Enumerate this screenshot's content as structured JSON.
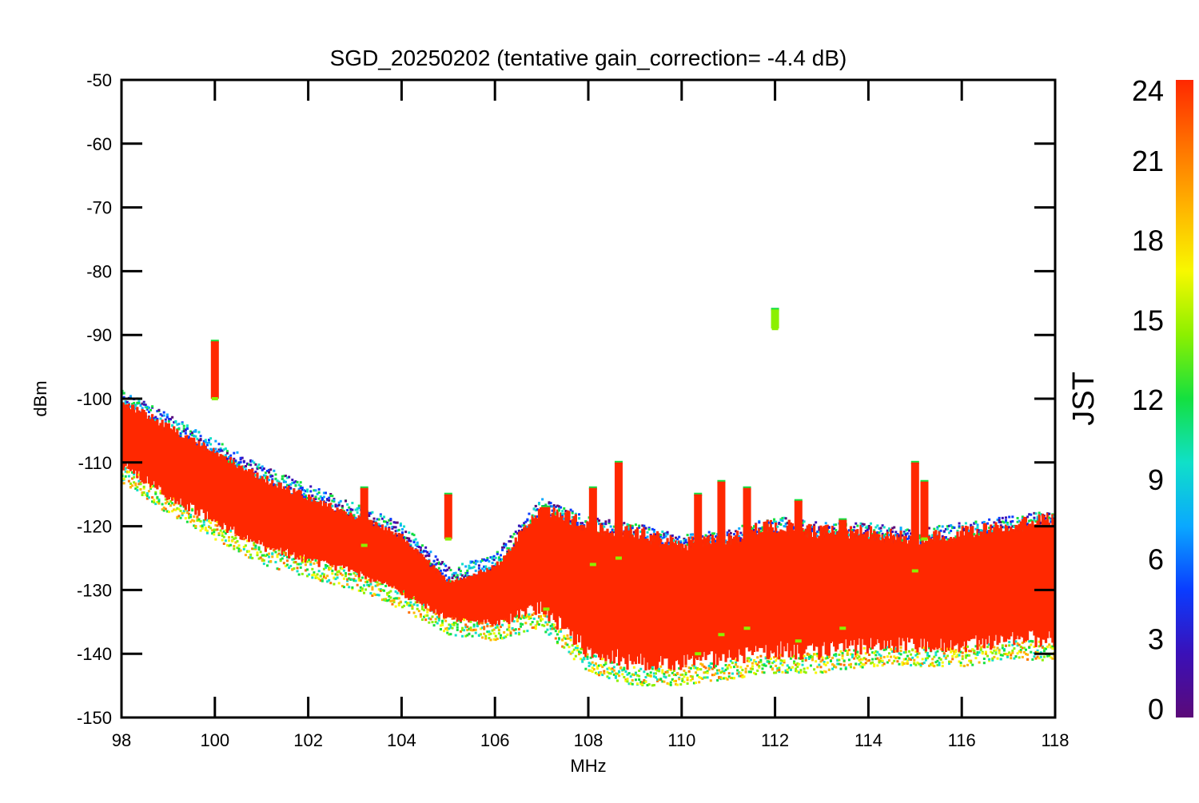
{
  "chart_data": {
    "type": "scatter",
    "title": "SGD_20250202 (tentative gain_correction= -4.4 dB)",
    "xlabel": "MHz",
    "ylabel": "dBm",
    "xlim": [
      98,
      118
    ],
    "ylim": [
      -150,
      -50
    ],
    "xticks": [
      "98",
      "100",
      "102",
      "104",
      "106",
      "108",
      "110",
      "112",
      "114",
      "116",
      "118"
    ],
    "yticks": [
      "-50",
      "-60",
      "-70",
      "-80",
      "-90",
      "-100",
      "-110",
      "-120",
      "-130",
      "-140",
      "-150"
    ],
    "grid": false,
    "colorbar": {
      "label": "JST",
      "range": [
        0,
        24
      ],
      "ticks": [
        "0",
        "3",
        "6",
        "9",
        "12",
        "15",
        "18",
        "21",
        "24"
      ],
      "colormap": [
        "#5b0a78",
        "#3a10b8",
        "#0a3cff",
        "#0aa8ff",
        "#10e0c8",
        "#14e040",
        "#8cf000",
        "#f8f800",
        "#ffb400",
        "#ff7000",
        "#ff2800"
      ]
    },
    "noise_floor_envelope": {
      "x": [
        98,
        99,
        100,
        101,
        102,
        103,
        104,
        105,
        106,
        107,
        108,
        109,
        110,
        111,
        112,
        113,
        114,
        115,
        116,
        117,
        118
      ],
      "upper": [
        -101,
        -105,
        -109,
        -113,
        -116,
        -119,
        -122,
        -129,
        -127,
        -118,
        -121,
        -122,
        -124,
        -123,
        -121,
        -122,
        -122,
        -123,
        -122,
        -121,
        -120
      ],
      "lower": [
        -111,
        -116,
        -120,
        -124,
        -126,
        -128,
        -131,
        -135,
        -136,
        -134,
        -141,
        -143,
        -143,
        -142,
        -141,
        -141,
        -140,
        -140,
        -140,
        -139,
        -139
      ]
    },
    "spikes": [
      {
        "x": 100.0,
        "top": -91,
        "bottom": -100
      },
      {
        "x": 103.2,
        "top": -114,
        "bottom": -123
      },
      {
        "x": 105.0,
        "top": -115,
        "bottom": -122
      },
      {
        "x": 107.1,
        "top": -117,
        "bottom": -133
      },
      {
        "x": 108.1,
        "top": -114,
        "bottom": -126
      },
      {
        "x": 108.65,
        "top": -110,
        "bottom": -125
      },
      {
        "x": 110.35,
        "top": -115,
        "bottom": -140
      },
      {
        "x": 110.85,
        "top": -113,
        "bottom": -137
      },
      {
        "x": 111.4,
        "top": -114,
        "bottom": -136
      },
      {
        "x": 112.0,
        "top": -86,
        "bottom": -89
      },
      {
        "x": 112.5,
        "top": -116,
        "bottom": -138
      },
      {
        "x": 113.45,
        "top": -119,
        "bottom": -136
      },
      {
        "x": 115.0,
        "top": -110,
        "bottom": -127
      },
      {
        "x": 115.2,
        "top": -113,
        "bottom": -122
      }
    ]
  }
}
